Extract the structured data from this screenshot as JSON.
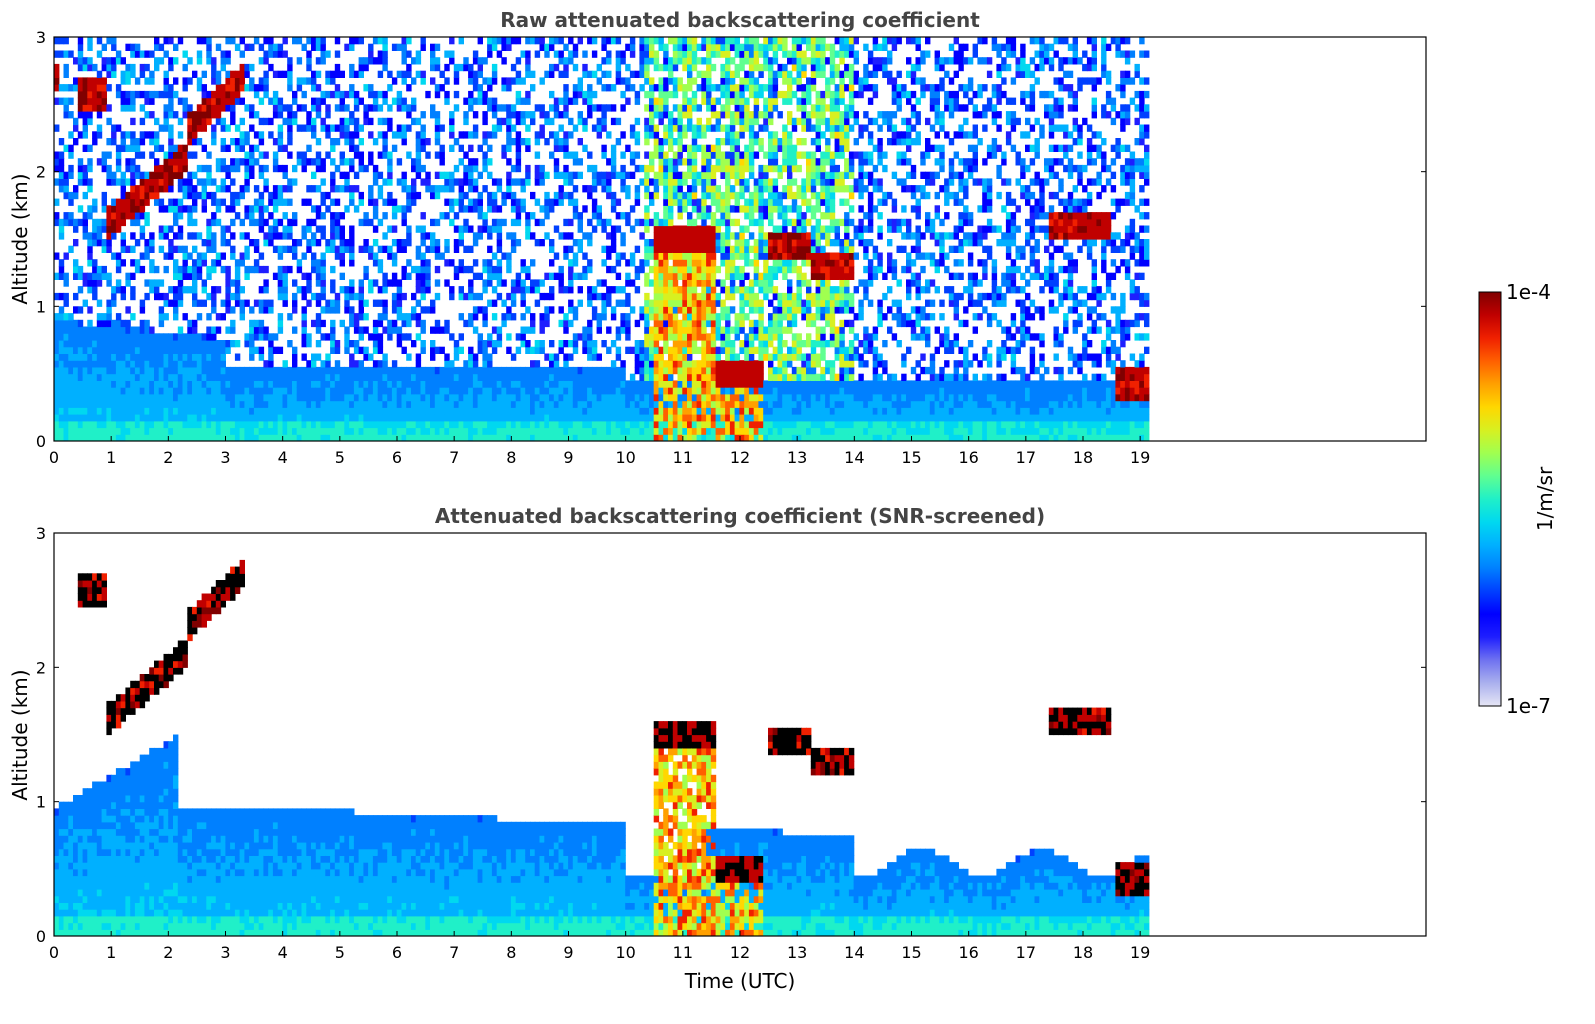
{
  "chart_data": [
    {
      "type": "heatmap",
      "title": "Raw attenuated backscattering coefficient",
      "xlabel": "",
      "ylabel": "Altitude (km)",
      "xlim": [
        0,
        24
      ],
      "ylim": [
        0,
        3
      ],
      "xticks": [
        "0",
        "1",
        "2",
        "3",
        "4",
        "5",
        "6",
        "7",
        "8",
        "9",
        "10",
        "11",
        "12",
        "13",
        "14",
        "15",
        "16",
        "17",
        "18",
        "19"
      ],
      "yticks": [
        "0",
        "1",
        "2",
        "3"
      ],
      "data_end_time": 19.15,
      "scale": "log",
      "features": [
        {
          "kind": "boundary_layer",
          "t_start": 0,
          "t_end": 19.15,
          "top_km": 0.4
        },
        {
          "kind": "cloud",
          "t_start": 0.0,
          "t_end": 0.1,
          "alt_km": 2.7
        },
        {
          "kind": "cloud",
          "t_start": 0.4,
          "t_end": 0.9,
          "alt_km": 2.58
        },
        {
          "kind": "cloud",
          "t_start": 0.9,
          "t_end": 2.3,
          "alt_km": 1.6,
          "alt_end_km": 2.1
        },
        {
          "kind": "cloud",
          "t_start": 2.3,
          "t_end": 3.3,
          "alt_km": 2.3,
          "alt_end_km": 2.7
        },
        {
          "kind": "precip_column",
          "t_start": 10.5,
          "t_end": 11.6,
          "alt_km": 1.5
        },
        {
          "kind": "precip_column",
          "t_start": 11.6,
          "t_end": 12.4,
          "alt_km": 0.5
        },
        {
          "kind": "cloud",
          "t_start": 12.5,
          "t_end": 13.2,
          "alt_km": 1.45
        },
        {
          "kind": "cloud",
          "t_start": 13.2,
          "t_end": 14.0,
          "alt_km": 1.3
        },
        {
          "kind": "cloud",
          "t_start": 17.4,
          "t_end": 18.5,
          "alt_km": 1.6
        },
        {
          "kind": "aerosol",
          "t_start": 18.6,
          "t_end": 19.15,
          "alt_km": 0.42
        }
      ]
    },
    {
      "type": "heatmap",
      "title": "Attenuated backscattering coefficient (SNR-screened)",
      "xlabel": "Time (UTC)",
      "ylabel": "Altitude (km)",
      "xlim": [
        0,
        24
      ],
      "ylim": [
        0,
        3
      ],
      "xticks": [
        "0",
        "1",
        "2",
        "3",
        "4",
        "5",
        "6",
        "7",
        "8",
        "9",
        "10",
        "11",
        "12",
        "13",
        "14",
        "15",
        "16",
        "17",
        "18",
        "19"
      ],
      "yticks": [
        "0",
        "1",
        "2",
        "3"
      ],
      "data_end_time": 19.15,
      "scale": "log",
      "features": [
        {
          "kind": "boundary_layer",
          "t_start": 0,
          "t_end": 19.15,
          "top_km": 0.9
        },
        {
          "kind": "cloud",
          "t_start": 0.4,
          "t_end": 0.9,
          "alt_km": 2.58
        },
        {
          "kind": "cloud",
          "t_start": 0.9,
          "t_end": 2.3,
          "alt_km": 1.6,
          "alt_end_km": 2.1
        },
        {
          "kind": "cloud",
          "t_start": 2.3,
          "t_end": 3.3,
          "alt_km": 2.3,
          "alt_end_km": 2.7
        },
        {
          "kind": "precip_column",
          "t_start": 10.5,
          "t_end": 11.6,
          "alt_km": 1.5
        },
        {
          "kind": "precip_column",
          "t_start": 11.6,
          "t_end": 12.4,
          "alt_km": 0.5
        },
        {
          "kind": "cloud",
          "t_start": 12.5,
          "t_end": 13.2,
          "alt_km": 1.45
        },
        {
          "kind": "cloud",
          "t_start": 13.2,
          "t_end": 14.0,
          "alt_km": 1.3
        },
        {
          "kind": "cloud",
          "t_start": 17.4,
          "t_end": 18.5,
          "alt_km": 1.6
        },
        {
          "kind": "aerosol",
          "t_start": 18.6,
          "t_end": 19.15,
          "alt_km": 0.42
        }
      ]
    }
  ],
  "colorbar": {
    "label": "1/m/sr",
    "max_label": "1e-4",
    "min_label": "1e-7",
    "colors": [
      "#e6e6f5",
      "#aab0ee",
      "#6f72f0",
      "#1e1eff",
      "#0000ff",
      "#0040ff",
      "#0080ff",
      "#00b0ff",
      "#00d8f0",
      "#20f0c8",
      "#60ff90",
      "#a0ff50",
      "#d8f020",
      "#ffd700",
      "#ffa000",
      "#ff6000",
      "#f02000",
      "#c00000",
      "#800000"
    ]
  }
}
